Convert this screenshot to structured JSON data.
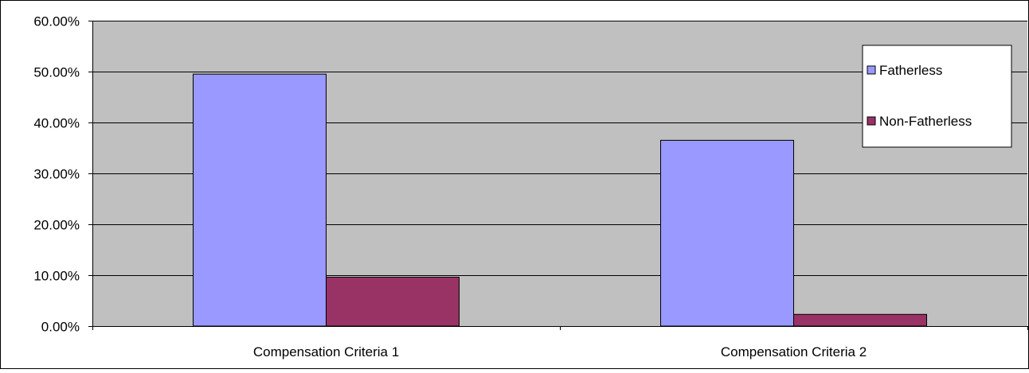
{
  "chart_data": {
    "type": "bar",
    "categories": [
      "Compensation Criteria 1",
      "Compensation Criteria 2"
    ],
    "series": [
      {
        "name": "Fatherless",
        "values": [
          49.5,
          36.5
        ],
        "color": "#9999ff"
      },
      {
        "name": "Non-Fatherless",
        "values": [
          9.6,
          2.3
        ],
        "color": "#993366"
      }
    ],
    "ylim": [
      0,
      60
    ],
    "yticks": [
      0,
      10,
      20,
      30,
      40,
      50,
      60
    ],
    "ytick_labels": [
      "0.00%",
      "10.00%",
      "20.00%",
      "30.00%",
      "40.00%",
      "50.00%",
      "60.00%"
    ],
    "title": "",
    "xlabel": "",
    "ylabel": "",
    "grid": true,
    "legend_position": "top-right",
    "plot_background": "#c0c0c0"
  }
}
